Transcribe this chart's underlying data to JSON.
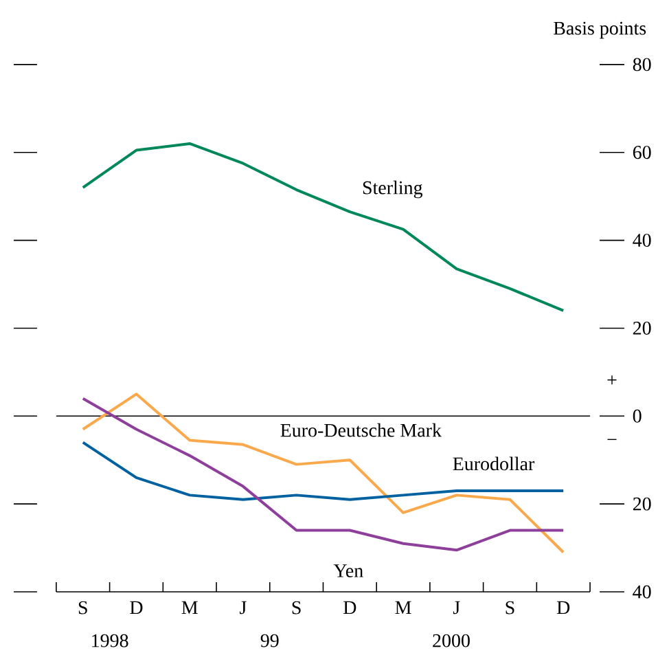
{
  "chart_data": {
    "type": "line",
    "ylabel": "Basis points",
    "categories": [
      "S",
      "D",
      "M",
      "J",
      "S",
      "D",
      "M",
      "J",
      "S",
      "D"
    ],
    "series": [
      {
        "name": "Sterling",
        "color": "#00875a",
        "values": [
          52,
          60.5,
          62,
          57.5,
          51.5,
          46.5,
          42.5,
          33.5,
          29,
          24
        ]
      },
      {
        "name": "Euro-Deutsche Mark",
        "color": "#f9a94b",
        "values": [
          -3,
          5,
          -5.5,
          -6.5,
          -11,
          -10,
          -22,
          -18,
          -19,
          -31
        ]
      },
      {
        "name": "Eurodollar",
        "color": "#0061a1",
        "values": [
          -6,
          -14,
          -18,
          -19,
          -18,
          -19,
          -18,
          -17,
          -17,
          -17
        ]
      },
      {
        "name": "Yen",
        "color": "#8e3f9b",
        "values": [
          4,
          -3,
          -9,
          -16,
          -26,
          -26,
          -29,
          -30.5,
          -26,
          -26
        ]
      }
    ],
    "ylim": [
      -40,
      80
    ],
    "yticks": [
      {
        "value": -40,
        "label": "40"
      },
      {
        "value": -20,
        "label": "20"
      },
      0,
      20,
      40,
      60,
      80
    ],
    "ref_lines": [
      {
        "axis": "y",
        "value": 0,
        "color": "#000000"
      }
    ],
    "annotations": [
      "1998",
      "99",
      "2000",
      "+",
      "−"
    ],
    "grid": false,
    "legend": false,
    "marker": "none",
    "line_style": "solid"
  }
}
